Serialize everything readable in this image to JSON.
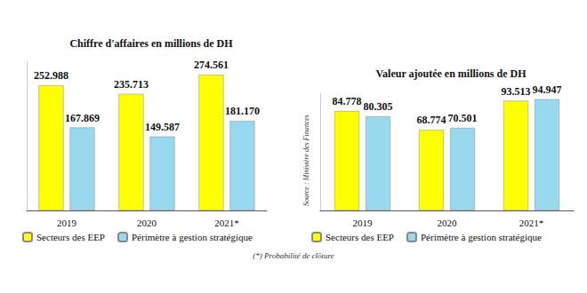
{
  "chart_data": [
    {
      "type": "bar",
      "title": "Chiffre d'affaires en millions de DH",
      "categories": [
        "2019",
        "2020",
        "2021*"
      ],
      "series": [
        {
          "name": "Secteurs des EEP",
          "color": "#ffff00",
          "values": [
            252988,
            235713,
            274561
          ],
          "value_labels": [
            "252.988",
            "235.713",
            "274.561"
          ]
        },
        {
          "name": "Périmètre à gestion stratégique",
          "color": "#99d9f0",
          "values": [
            167869,
            149587,
            181170
          ],
          "value_labels": [
            "167.869",
            "149.587",
            "181.170"
          ]
        }
      ],
      "ylim": [
        0,
        300000
      ],
      "grid": false,
      "legend": "bottom",
      "data_labels": true,
      "tick_labels": "x"
    },
    {
      "type": "bar",
      "title": "Valeur ajoutée en millions de DH",
      "categories": [
        "2019",
        "2020",
        "2021*"
      ],
      "series": [
        {
          "name": "Secteurs des EEP",
          "color": "#ffff00",
          "values": [
            84778,
            68774,
            93513
          ],
          "value_labels": [
            "84.778",
            "68.774",
            "93.513"
          ]
        },
        {
          "name": "Périmètre à gestion stratégique",
          "color": "#99d9f0",
          "values": [
            80305,
            70501,
            94947
          ],
          "value_labels": [
            "80.305",
            "70.501",
            "94.947"
          ]
        }
      ],
      "ylim": [
        0,
        100000
      ],
      "grid": false,
      "legend": "bottom",
      "data_labels": true,
      "tick_labels": "x"
    }
  ],
  "source": "Source : Ministère des Finances",
  "footnote": "(*) Probabilité de clôture"
}
